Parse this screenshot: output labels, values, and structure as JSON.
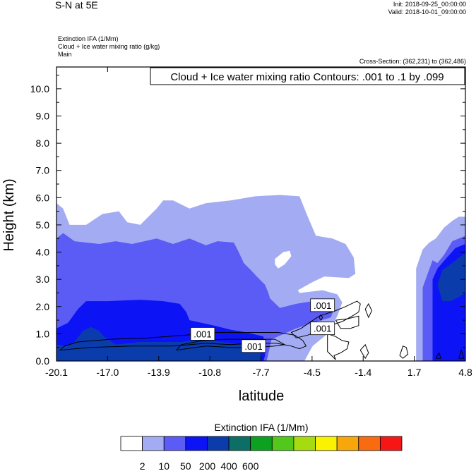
{
  "header": {
    "title": "S-N at 5E",
    "init": "Init: 2018-09-25_00:00:00",
    "valid": "Valid: 2018-10-01_09:00:00",
    "field_lines": [
      "Extinction IFA   (1/Mm)",
      "Cloud + Ice water mixing ratio   (g/kg)",
      "Main"
    ],
    "cross_section": "Cross-Section: (362,231) to (362,486)"
  },
  "chart_data": {
    "type": "contour",
    "contour_info": "Cloud + Ice water mixing ratio Contours: .001 to .1 by .099",
    "xlabel": "latitude",
    "ylabel": "Height (km)",
    "xlim": [
      -20.1,
      4.8
    ],
    "ylim": [
      0.0,
      10.8
    ],
    "x_ticks": [
      "-20.1",
      "-17.0",
      "-13.9",
      "-10.8",
      "-7.7",
      "-4.5",
      "-1.4",
      "1.7",
      "4.8"
    ],
    "y_ticks": [
      "0.0",
      "1.0",
      "2.0",
      "3.0",
      "4.0",
      "5.0",
      "6.0",
      "7.0",
      "8.0",
      "9.0",
      "10.0"
    ],
    "contour_labels": [
      {
        "text": ".001",
        "x": -11.2,
        "y": 1.0
      },
      {
        "text": ".001",
        "x": -8.1,
        "y": 0.55
      },
      {
        "text": ".001",
        "x": -3.9,
        "y": 2.05
      },
      {
        "text": ".001",
        "x": -3.9,
        "y": 1.2
      }
    ],
    "filled_regions": [
      {
        "level": 2,
        "color": "#a3acf3",
        "points": [
          [
            -20.1,
            0
          ],
          [
            -20.1,
            5.8
          ],
          [
            -19.7,
            5.6
          ],
          [
            -19.3,
            5.0
          ],
          [
            -18.3,
            5.0
          ],
          [
            -17.3,
            5.4
          ],
          [
            -16.3,
            5.5
          ],
          [
            -15.8,
            5.1
          ],
          [
            -15.0,
            5.0
          ],
          [
            -14.0,
            5.6
          ],
          [
            -13.6,
            5.9
          ],
          [
            -13.0,
            5.9
          ],
          [
            -12.0,
            5.6
          ],
          [
            -11.0,
            5.8
          ],
          [
            -9.5,
            5.9
          ],
          [
            -8.0,
            6.05
          ],
          [
            -6.5,
            6.1
          ],
          [
            -5.3,
            6.05
          ],
          [
            -4.8,
            5.3
          ],
          [
            -4.3,
            4.6
          ],
          [
            -3.3,
            4.5
          ],
          [
            -2.5,
            4.3
          ],
          [
            -2.0,
            3.8
          ],
          [
            -1.9,
            3.2
          ],
          [
            -2.3,
            3.05
          ],
          [
            -3.8,
            3.1
          ],
          [
            -4.5,
            2.9
          ],
          [
            -5.4,
            2.6
          ],
          [
            -5.3,
            2.5
          ],
          [
            -3.9,
            2.6
          ],
          [
            -3.0,
            2.45
          ],
          [
            -2.7,
            2.15
          ],
          [
            -3.0,
            1.65
          ],
          [
            -3.5,
            1.1
          ],
          [
            -3.0,
            0.45
          ],
          [
            -2.5,
            0
          ],
          [
            -20.1,
            0
          ]
        ]
      },
      {
        "level": 10,
        "color": "#5b5bf6",
        "points": [
          [
            -20.1,
            0
          ],
          [
            -20.1,
            4.5
          ],
          [
            -19.7,
            4.7
          ],
          [
            -19.0,
            4.4
          ],
          [
            -17.5,
            4.3
          ],
          [
            -16.5,
            4.4
          ],
          [
            -15.5,
            4.3
          ],
          [
            -14.0,
            4.5
          ],
          [
            -13.0,
            4.3
          ],
          [
            -12.0,
            4.5
          ],
          [
            -11.0,
            4.25
          ],
          [
            -10.3,
            4.4
          ],
          [
            -9.3,
            4.35
          ],
          [
            -9.0,
            4.0
          ],
          [
            -8.7,
            3.6
          ],
          [
            -8.2,
            3.3
          ],
          [
            -7.9,
            3.1
          ],
          [
            -7.4,
            2.8
          ],
          [
            -7.2,
            2.5
          ],
          [
            -7.1,
            2.3
          ],
          [
            -6.5,
            1.95
          ],
          [
            -5.5,
            2.1
          ],
          [
            -4.5,
            2.2
          ],
          [
            -3.7,
            2.2
          ],
          [
            -3.2,
            1.9
          ],
          [
            -3.4,
            1.6
          ],
          [
            -4.5,
            1.4
          ],
          [
            -5.5,
            1.2
          ],
          [
            -7.0,
            0.8
          ],
          [
            -7.3,
            0
          ],
          [
            -20.1,
            0
          ]
        ]
      },
      {
        "level": 50,
        "color": "#0c14f5",
        "points": [
          [
            -20.1,
            0
          ],
          [
            -20.1,
            1.2
          ],
          [
            -19.4,
            1.4
          ],
          [
            -18.8,
            1.9
          ],
          [
            -18.3,
            2.2
          ],
          [
            -17.0,
            2.2
          ],
          [
            -15.0,
            2.25
          ],
          [
            -13.6,
            2.2
          ],
          [
            -12.6,
            2.1
          ],
          [
            -12.2,
            1.8
          ],
          [
            -12.0,
            1.5
          ],
          [
            -10.5,
            1.3
          ],
          [
            -9.5,
            1.15
          ],
          [
            -8.5,
            1.05
          ],
          [
            -7.5,
            0.9
          ],
          [
            -7.4,
            0.2
          ],
          [
            -7.5,
            0
          ],
          [
            -20.1,
            0
          ]
        ]
      },
      {
        "level": 200,
        "color": "#0b3cac",
        "points": [
          [
            -20.1,
            0
          ],
          [
            -20.1,
            0.6
          ],
          [
            -19.5,
            0.55
          ],
          [
            -19.0,
            0.7
          ],
          [
            -18.5,
            1.1
          ],
          [
            -18.0,
            1.25
          ],
          [
            -17.5,
            1.1
          ],
          [
            -17.2,
            0.9
          ],
          [
            -16.5,
            0.6
          ],
          [
            -15.0,
            0.7
          ],
          [
            -13.5,
            0.7
          ],
          [
            -12.5,
            0.7
          ],
          [
            -11.5,
            0.8
          ],
          [
            -10.5,
            0.75
          ],
          [
            -9.5,
            0.65
          ],
          [
            -8.5,
            0.6
          ],
          [
            -7.8,
            0.5
          ],
          [
            -7.6,
            0
          ],
          [
            -20.1,
            0
          ]
        ]
      },
      {
        "level": 2,
        "color": "#a3acf3",
        "points": [
          [
            1.8,
            0
          ],
          [
            1.8,
            3.4
          ],
          [
            2.2,
            4.1
          ],
          [
            2.6,
            4.35
          ],
          [
            3.0,
            4.5
          ],
          [
            3.5,
            4.9
          ],
          [
            4.0,
            5.15
          ],
          [
            4.4,
            5.3
          ],
          [
            4.8,
            5.3
          ],
          [
            4.8,
            0
          ],
          [
            1.8,
            0
          ]
        ]
      },
      {
        "level": 10,
        "color": "#5b5bf6",
        "points": [
          [
            2.2,
            0
          ],
          [
            2.2,
            2.7
          ],
          [
            2.5,
            3.2
          ],
          [
            2.8,
            3.7
          ],
          [
            3.1,
            3.6
          ],
          [
            3.5,
            3.9
          ],
          [
            4.0,
            4.4
          ],
          [
            4.4,
            4.5
          ],
          [
            4.8,
            4.6
          ],
          [
            4.8,
            0
          ],
          [
            2.2,
            0
          ]
        ]
      },
      {
        "level": 50,
        "color": "#0c14f5",
        "points": [
          [
            2.8,
            0
          ],
          [
            2.8,
            3.0
          ],
          [
            3.1,
            3.4
          ],
          [
            3.6,
            3.75
          ],
          [
            4.2,
            4.15
          ],
          [
            4.8,
            4.3
          ],
          [
            4.8,
            0
          ],
          [
            2.8,
            0
          ]
        ]
      },
      {
        "level": 200,
        "color": "#0b3cac",
        "points": [
          [
            3.1,
            2.8
          ],
          [
            3.4,
            3.35
          ],
          [
            3.9,
            3.55
          ],
          [
            4.4,
            3.8
          ],
          [
            4.8,
            3.95
          ],
          [
            4.8,
            2.5
          ],
          [
            4.4,
            2.35
          ],
          [
            3.9,
            2.2
          ],
          [
            3.4,
            2.2
          ],
          [
            3.1,
            2.8
          ]
        ]
      }
    ],
    "holes": [
      {
        "points": [
          [
            -6.8,
            3.75
          ],
          [
            -6.3,
            4.0
          ],
          [
            -5.9,
            4.05
          ],
          [
            -5.8,
            3.85
          ],
          [
            -6.2,
            3.55
          ],
          [
            -6.6,
            3.4
          ],
          [
            -6.8,
            3.55
          ],
          [
            -6.8,
            3.75
          ]
        ]
      },
      {
        "points": [
          [
            -5.0,
            0
          ],
          [
            -4.5,
            0.55
          ],
          [
            -3.6,
            1.0
          ],
          [
            -2.8,
            1.3
          ],
          [
            -2.5,
            1.6
          ],
          [
            -2.3,
            1.9
          ],
          [
            -1.5,
            1.6
          ],
          [
            -0.8,
            0.8
          ],
          [
            -0.5,
            0.35
          ],
          [
            -1.0,
            0.2
          ],
          [
            -1.4,
            0.1
          ],
          [
            -1.6,
            0.5
          ],
          [
            -1.7,
            0
          ],
          [
            -5.0,
            0
          ]
        ]
      }
    ],
    "contour_lines": [
      [
        [
          -19.9,
          0.4
        ],
        [
          -18.0,
          0.5
        ],
        [
          -15.5,
          0.55
        ],
        [
          -13.0,
          0.55
        ],
        [
          -11.0,
          0.65
        ],
        [
          -9.5,
          0.6
        ],
        [
          -8.2,
          0.65
        ],
        [
          -6.7,
          0.65
        ],
        [
          -5.8,
          0.55
        ],
        [
          -5.3,
          0.45
        ],
        [
          -4.9,
          0.55
        ],
        [
          -5.1,
          0.75
        ],
        [
          -5.6,
          0.95
        ],
        [
          -6.6,
          1.05
        ],
        [
          -8.5,
          1.05
        ],
        [
          -10.5,
          1.05
        ],
        [
          -12.2,
          0.95
        ],
        [
          -14.5,
          0.85
        ],
        [
          -16.8,
          0.8
        ],
        [
          -18.8,
          0.7
        ],
        [
          -19.6,
          0.55
        ],
        [
          -19.9,
          0.4
        ]
      ],
      [
        [
          -12.8,
          0.4
        ],
        [
          -11.0,
          0.55
        ],
        [
          -9.5,
          0.5
        ],
        [
          -8.0,
          0.5
        ],
        [
          -6.8,
          0.55
        ],
        [
          -6.2,
          0.6
        ],
        [
          -6.8,
          0.8
        ],
        [
          -8.2,
          0.8
        ],
        [
          -9.8,
          0.8
        ],
        [
          -11.2,
          0.75
        ],
        [
          -12.5,
          0.6
        ],
        [
          -12.8,
          0.4
        ]
      ],
      [
        [
          -5.5,
          0.85
        ],
        [
          -4.8,
          0.95
        ],
        [
          -4.1,
          1.15
        ],
        [
          -3.2,
          1.35
        ],
        [
          -2.7,
          1.45
        ],
        [
          -2.1,
          1.65
        ],
        [
          -1.7,
          1.8
        ],
        [
          -1.6,
          2.1
        ],
        [
          -1.8,
          2.2
        ],
        [
          -2.5,
          2.0
        ],
        [
          -3.1,
          1.85
        ],
        [
          -3.6,
          1.75
        ],
        [
          -4.1,
          1.65
        ],
        [
          -4.6,
          1.45
        ],
        [
          -5.2,
          1.2
        ],
        [
          -5.8,
          1.05
        ],
        [
          -5.5,
          0.85
        ]
      ],
      [
        [
          -3.1,
          1.5
        ],
        [
          -2.4,
          1.55
        ],
        [
          -1.7,
          1.65
        ],
        [
          -1.7,
          1.3
        ],
        [
          -2.2,
          1.2
        ],
        [
          -2.8,
          1.2
        ],
        [
          -3.1,
          1.5
        ]
      ],
      [
        [
          -1.3,
          1.9
        ],
        [
          -1.1,
          2.1
        ],
        [
          -0.9,
          1.85
        ],
        [
          -1.1,
          1.6
        ],
        [
          -1.3,
          1.9
        ]
      ],
      [
        [
          -3.6,
          1.0
        ],
        [
          -3.1,
          0.9
        ],
        [
          -2.7,
          0.75
        ],
        [
          -2.3,
          0.7
        ],
        [
          -2.4,
          0.45
        ],
        [
          -2.8,
          0.3
        ],
        [
          -3.2,
          0.2
        ],
        [
          -3.1,
          0.05
        ],
        [
          -3.6,
          0.35
        ],
        [
          -3.6,
          1.0
        ]
      ],
      [
        [
          -1.6,
          0.4
        ],
        [
          -1.3,
          0.6
        ],
        [
          -1.1,
          0.3
        ],
        [
          -1.3,
          0.1
        ],
        [
          -1.6,
          0.4
        ]
      ],
      [
        [
          -4.1,
          1.6
        ],
        [
          -4.0,
          1.7
        ],
        [
          -3.9,
          1.6
        ],
        [
          -4.0,
          1.5
        ],
        [
          -4.1,
          1.6
        ]
      ],
      [
        [
          0.8,
          0.2
        ],
        [
          1.0,
          0.55
        ],
        [
          1.2,
          0.5
        ],
        [
          1.3,
          0.25
        ],
        [
          1.0,
          0.1
        ],
        [
          0.8,
          0.2
        ]
      ],
      [
        [
          3.0,
          0.1
        ],
        [
          3.2,
          0.3
        ],
        [
          3.3,
          0.1
        ],
        [
          3.0,
          0.1
        ]
      ],
      [
        [
          4.4,
          0.1
        ],
        [
          4.55,
          0.4
        ],
        [
          4.7,
          0.1
        ],
        [
          4.4,
          0.1
        ]
      ]
    ],
    "legend": {
      "title": "Extinction IFA  (1/Mm)",
      "colors": [
        "#ffffff",
        "#a3acf3",
        "#5b5bf6",
        "#0c14f5",
        "#0b3cac",
        "#0c6e64",
        "#0ca121",
        "#52c81a",
        "#a6db10",
        "#f9f301",
        "#f7a70a",
        "#f86b10",
        "#f71616"
      ],
      "labels": [
        "2",
        "10",
        "50",
        "200",
        "400",
        "600"
      ]
    }
  }
}
